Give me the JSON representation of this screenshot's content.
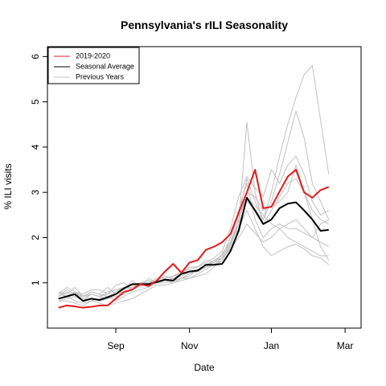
{
  "chart_data": {
    "type": "line",
    "title": "Pennsylvania's rILI Seasonality",
    "xlabel": "Date",
    "ylabel": "% ILI visits",
    "ylim": [
      0,
      6
    ],
    "yticks": [
      1,
      2,
      3,
      4,
      5,
      6
    ],
    "xticks": [
      {
        "label": "Sep",
        "at": 7
      },
      {
        "label": "Nov",
        "at": 16
      },
      {
        "label": "Jan",
        "at": 26
      },
      {
        "label": "Mar",
        "at": 35
      }
    ],
    "x": [
      0,
      1,
      2,
      3,
      4,
      5,
      6,
      7,
      8,
      9,
      10,
      11,
      12,
      13,
      14,
      15,
      16,
      17,
      18,
      19,
      20,
      21,
      22,
      23,
      24,
      25,
      26,
      27,
      28,
      29,
      30,
      31,
      32,
      33,
      34,
      35,
      36
    ],
    "legend_position": "top-left",
    "series": [
      {
        "name": "2019-2020",
        "color": "#e41a1c",
        "width": 2,
        "values": [
          0.45,
          0.5,
          0.48,
          0.45,
          0.47,
          0.5,
          0.5,
          0.65,
          0.8,
          0.85,
          0.97,
          0.93,
          1.05,
          1.25,
          1.42,
          1.22,
          1.45,
          1.5,
          1.73,
          1.8,
          1.9,
          2.08,
          2.55,
          3.0,
          3.5,
          2.65,
          2.68,
          3.02,
          3.35,
          3.5,
          3.0,
          2.88,
          3.05,
          3.12,
          null,
          null,
          null
        ]
      },
      {
        "name": "Seasonal Average",
        "color": "#000000",
        "width": 2,
        "values": [
          0.65,
          0.7,
          0.75,
          0.6,
          0.65,
          0.62,
          0.68,
          0.75,
          0.88,
          0.97,
          0.97,
          0.97,
          1.02,
          1.07,
          1.05,
          1.2,
          1.25,
          1.27,
          1.4,
          1.4,
          1.42,
          1.7,
          2.15,
          2.88,
          2.6,
          2.3,
          2.4,
          2.65,
          2.75,
          2.78,
          2.6,
          2.4,
          2.15,
          2.17,
          null,
          null,
          null
        ]
      },
      {
        "name": "Previous Years",
        "color": "#c0c0c0",
        "width": 1,
        "values": [
          0.7,
          0.8,
          0.7,
          0.6,
          0.75,
          0.7,
          0.65,
          0.7,
          0.75,
          0.9,
          1.0,
          0.95,
          1.0,
          1.05,
          1.0,
          1.1,
          1.15,
          1.3,
          1.4,
          1.5,
          1.6,
          2.0,
          2.6,
          3.2,
          2.4,
          2.0,
          2.2,
          2.3,
          2.2,
          2.2,
          2.1,
          2.0,
          2.3,
          2.4,
          null,
          null,
          null
        ]
      },
      {
        "values": [
          0.75,
          0.9,
          0.8,
          0.75,
          0.85,
          0.85,
          0.75,
          0.95,
          1.0,
          0.85,
          0.95,
          1.0,
          1.1,
          1.1,
          1.15,
          1.25,
          1.3,
          1.35,
          1.45,
          1.55,
          1.7,
          2.2,
          2.9,
          3.35,
          3.1,
          2.9,
          3.5,
          3.2,
          3.6,
          3.8,
          3.4,
          2.8,
          2.5,
          2.6,
          null,
          null,
          null
        ]
      },
      {
        "values": [
          0.6,
          0.6,
          0.55,
          0.5,
          0.6,
          0.55,
          0.5,
          0.55,
          0.6,
          0.65,
          0.75,
          0.85,
          0.95,
          0.95,
          1.0,
          1.05,
          1.1,
          1.15,
          1.2,
          1.35,
          1.5,
          1.85,
          2.4,
          3.0,
          2.9,
          2.6,
          2.7,
          2.8,
          3.0,
          3.6,
          3.0,
          2.4,
          1.8,
          1.5,
          null,
          null,
          null
        ]
      },
      {
        "values": [
          0.8,
          0.75,
          0.9,
          0.7,
          0.8,
          0.75,
          0.9,
          0.75,
          0.85,
          1.05,
          0.9,
          1.1,
          1.0,
          1.05,
          1.1,
          1.2,
          1.35,
          1.35,
          1.5,
          1.45,
          1.65,
          1.9,
          2.3,
          2.8,
          2.6,
          2.4,
          2.8,
          3.4,
          4.1,
          4.8,
          4.2,
          3.2,
          2.8,
          2.4,
          null,
          null,
          null
        ]
      },
      {
        "values": [
          0.65,
          0.7,
          0.6,
          0.55,
          0.6,
          0.65,
          0.7,
          0.6,
          0.7,
          0.8,
          0.85,
          0.9,
          1.0,
          1.0,
          1.05,
          1.1,
          1.1,
          1.2,
          1.3,
          1.4,
          1.55,
          1.75,
          2.0,
          2.3,
          2.1,
          1.9,
          2.0,
          2.2,
          2.3,
          2.4,
          2.2,
          2.0,
          1.9,
          1.8,
          null,
          null,
          null
        ]
      },
      {
        "values": [
          0.8,
          0.7,
          0.8,
          0.65,
          0.75,
          0.7,
          0.8,
          0.85,
          0.9,
          0.95,
          1.0,
          1.05,
          1.0,
          1.1,
          1.15,
          1.2,
          1.25,
          1.3,
          1.35,
          1.5,
          1.6,
          2.0,
          2.5,
          3.3,
          2.8,
          2.4,
          3.0,
          3.8,
          4.5,
          5.1,
          5.6,
          5.8,
          4.6,
          3.4,
          null,
          null,
          null
        ]
      },
      {
        "values": [
          0.7,
          0.85,
          0.75,
          0.7,
          0.8,
          0.75,
          0.7,
          0.8,
          0.9,
          0.9,
          0.95,
          1.0,
          1.05,
          1.05,
          1.1,
          1.15,
          1.25,
          1.3,
          1.4,
          1.45,
          1.55,
          1.9,
          2.2,
          2.6,
          2.2,
          1.8,
          1.6,
          1.7,
          1.8,
          1.85,
          1.75,
          1.6,
          1.55,
          1.4,
          null,
          null,
          null
        ]
      },
      {
        "values": [
          0.6,
          0.65,
          0.7,
          0.6,
          0.65,
          0.6,
          0.65,
          0.75,
          0.8,
          0.85,
          0.95,
          0.95,
          1.0,
          1.05,
          1.0,
          1.1,
          1.2,
          1.25,
          1.35,
          1.4,
          1.5,
          1.8,
          2.3,
          4.55,
          3.0,
          2.3,
          2.6,
          2.9,
          3.2,
          3.3,
          3.0,
          2.6,
          2.4,
          2.3,
          null,
          null,
          null
        ]
      },
      {
        "values": [
          0.75,
          0.7,
          0.8,
          0.7,
          0.75,
          0.7,
          0.75,
          0.85,
          0.85,
          0.9,
          1.0,
          1.0,
          1.05,
          1.15,
          1.1,
          1.2,
          1.2,
          1.3,
          1.35,
          1.5,
          1.55,
          1.9,
          2.4,
          2.9,
          2.7,
          2.5,
          2.3,
          2.2,
          2.0,
          1.9,
          1.8,
          1.7,
          1.6,
          1.6,
          null,
          null,
          null
        ]
      }
    ]
  }
}
